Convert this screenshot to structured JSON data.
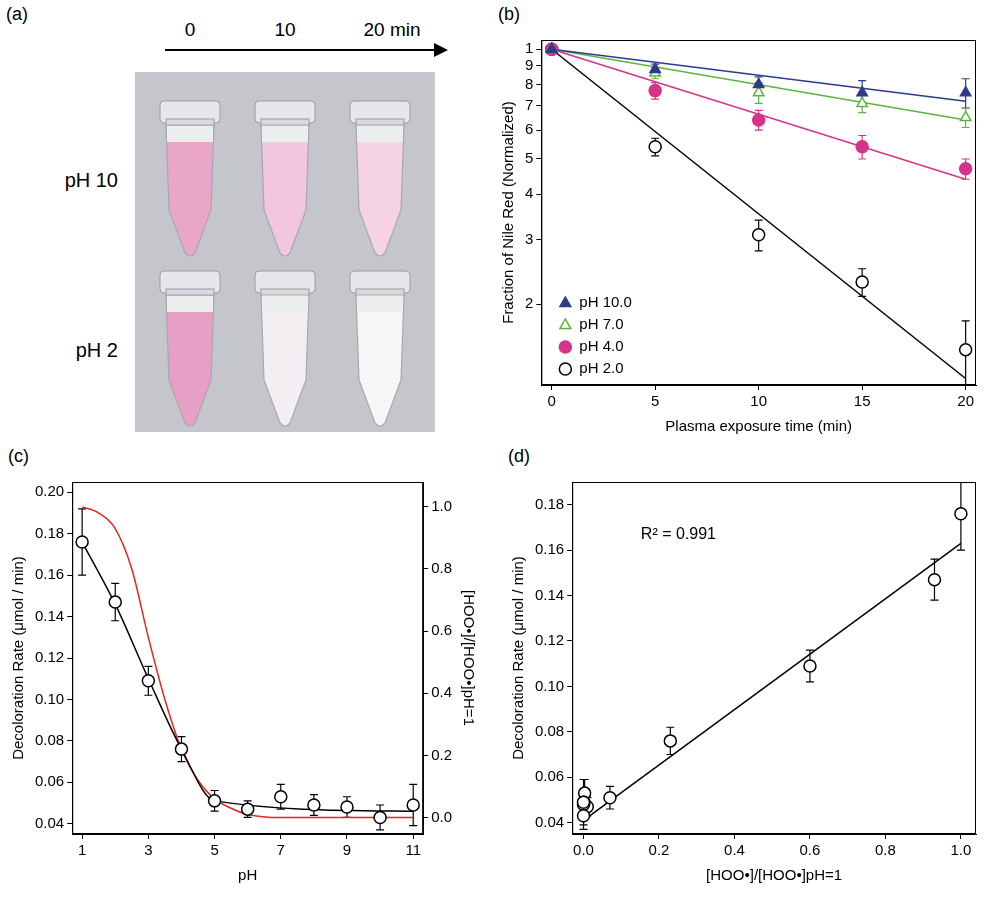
{
  "panel_a": {
    "panel": "(a)",
    "times": [
      "0",
      "10",
      "20 min"
    ],
    "rows": [
      {
        "label": "pH 10",
        "colors": [
          "#e9a6c9",
          "#f2c6dc",
          "#f5d3e4"
        ]
      },
      {
        "label": "pH 2",
        "colors": [
          "#e7a0c5",
          "#f3eef1",
          "#f6f6f6"
        ]
      }
    ]
  },
  "chart_data": [
    {
      "panel": "(b)",
      "type": "scatter",
      "log": "y",
      "grid": false,
      "legend": "lower left",
      "xlabel": "Plasma exposure time (min)",
      "ylabel": "Fraction of Nile Red (Normalized)",
      "x": [
        0,
        5,
        10,
        15,
        20
      ],
      "xlim": [
        -0.5,
        20.5
      ],
      "xticks": [
        0,
        5,
        10,
        15,
        20
      ],
      "ylim": [
        0.12,
        1.06
      ],
      "yticks": [
        {
          "value": 0.2,
          "label": "2"
        },
        {
          "value": 0.3,
          "label": "3"
        },
        {
          "value": 0.4,
          "label": "4"
        },
        {
          "value": 0.5,
          "label": "5"
        },
        {
          "value": 0.6,
          "label": "6"
        },
        {
          "value": 0.7,
          "label": "7"
        },
        {
          "value": 0.8,
          "label": "8"
        },
        {
          "value": 0.9,
          "label": "9"
        },
        1
      ],
      "series": [
        {
          "name": "pH 10.0",
          "color": "#2e3a8c",
          "marker": "triangle",
          "values": [
            1.0,
            0.88,
            0.8,
            0.76,
            0.76
          ],
          "errors": [
            0.02,
            0.03,
            0.04,
            0.06,
            0.07
          ]
        },
        {
          "name": "pH 7.0",
          "color": "#5bb53c",
          "marker": "open-triangle",
          "values": [
            1.0,
            0.86,
            0.76,
            0.71,
            0.65
          ],
          "errors": [
            0.02,
            0.03,
            0.05,
            0.04,
            0.04
          ]
        },
        {
          "name": "pH 4.0",
          "color": "#d6338a",
          "marker": "circle",
          "values": [
            1.0,
            0.77,
            0.64,
            0.54,
            0.47
          ],
          "errors": [
            0.02,
            0.04,
            0.04,
            0.04,
            0.03
          ]
        },
        {
          "name": "pH 2.0",
          "color": "#000000",
          "marker": "open-circle",
          "values": [
            1.0,
            0.54,
            0.31,
            0.23,
            0.15
          ],
          "errors": [
            0.02,
            0.03,
            0.03,
            0.02,
            0.03
          ]
        },
        {
          "type": "line",
          "color": "#2e3a8c",
          "x": [
            0,
            20
          ],
          "values": [
            1.0,
            0.72
          ]
        },
        {
          "type": "line",
          "color": "#5bb53c",
          "x": [
            0,
            20
          ],
          "values": [
            1.0,
            0.64
          ]
        },
        {
          "type": "line",
          "color": "#d6338a",
          "x": [
            0,
            20
          ],
          "values": [
            1.0,
            0.44
          ]
        },
        {
          "type": "line",
          "color": "#000000",
          "x": [
            0,
            20
          ],
          "values": [
            1.0,
            0.125
          ]
        }
      ]
    },
    {
      "panel": "(c)",
      "type": "scatter",
      "grid": false,
      "xlabel": "pH",
      "ylabel": "Decoloration Rate (μmol / min)",
      "y2label": "[HOO•]/[HOO•]pH=1",
      "x": [
        1,
        2,
        3,
        4,
        5,
        6,
        7,
        8,
        9,
        10,
        11
      ],
      "xlim": [
        0.7,
        11.3
      ],
      "xticks": [
        1,
        3,
        5,
        7,
        9,
        11
      ],
      "ylim": [
        0.035,
        0.205
      ],
      "yticks": [
        0.04,
        0.06,
        0.08,
        {
          "value": 0.1,
          "label": "0.10"
        },
        0.12,
        0.14,
        0.16,
        0.18,
        {
          "value": 0.2,
          "label": "0.20"
        }
      ],
      "y2lim": [
        -0.053,
        1.08
      ],
      "y2ticks": [
        {
          "value": 0,
          "label": "0.0"
        },
        0.2,
        0.4,
        0.6,
        0.8,
        {
          "value": 1,
          "label": "1.0"
        }
      ],
      "series": [
        {
          "color": "#000000",
          "marker": "open-circle",
          "values": [
            0.176,
            0.147,
            0.109,
            0.076,
            0.051,
            0.047,
            0.053,
            0.049,
            0.048,
            0.043,
            0.049
          ],
          "errors": [
            0.016,
            0.009,
            0.007,
            0.006,
            0.005,
            0.004,
            0.006,
            0.005,
            0.005,
            0.006,
            0.01
          ]
        },
        {
          "type": "line",
          "color": "#000000",
          "x": [
            1,
            2,
            3,
            4,
            5,
            11
          ],
          "values": [
            0.176,
            0.146,
            0.11,
            0.076,
            0.051,
            0.046
          ]
        },
        {
          "type": "line",
          "color": "#e8251d",
          "axis": "y2",
          "x": [
            1,
            1.5,
            2,
            2.5,
            3,
            3.5,
            4,
            4.5,
            5,
            5.5,
            6,
            7,
            8,
            9,
            10,
            11
          ],
          "values": [
            1.0,
            0.98,
            0.93,
            0.8,
            0.58,
            0.38,
            0.22,
            0.12,
            0.06,
            0.03,
            0.01,
            0.0,
            0.0,
            0.0,
            0.0,
            0.0
          ]
        }
      ]
    },
    {
      "panel": "(d)",
      "type": "scatter",
      "grid": false,
      "xlabel": "[HOO•]/[HOO•]pH=1",
      "ylabel": "Decoloration Rate (μmol / min)",
      "annotations": [
        "R² = 0.991"
      ],
      "x": [
        1.0,
        0.93,
        0.6,
        0.23,
        0.07,
        0.01,
        0.003,
        0.001,
        0.0,
        0.0,
        0.0
      ],
      "xlim": [
        -0.03,
        1.04
      ],
      "xticks": [
        {
          "value": 0,
          "label": "0.0"
        },
        0.2,
        0.4,
        0.6,
        0.8,
        {
          "value": 1,
          "label": "1.0"
        }
      ],
      "ylim": [
        0.035,
        0.19
      ],
      "yticks": [
        0.04,
        0.06,
        0.08,
        {
          "value": 0.1,
          "label": "0.10"
        },
        0.12,
        0.14,
        0.16,
        0.18
      ],
      "series": [
        {
          "color": "#000000",
          "marker": "open-circle",
          "values": [
            0.176,
            0.147,
            0.109,
            0.076,
            0.051,
            0.047,
            0.053,
            0.049,
            0.048,
            0.043,
            0.049
          ],
          "errors": [
            0.016,
            0.009,
            0.007,
            0.006,
            0.005,
            0.004,
            0.006,
            0.005,
            0.005,
            0.006,
            0.01
          ]
        },
        {
          "type": "line",
          "color": "#000000",
          "x": [
            0,
            1
          ],
          "values": [
            0.041,
            0.163
          ]
        }
      ]
    }
  ]
}
